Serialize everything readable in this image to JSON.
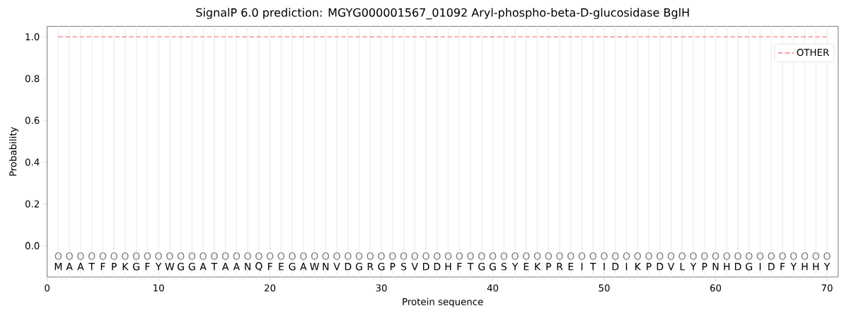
{
  "chart_data": {
    "type": "line",
    "title": "SignalP 6.0 prediction: MGYG000001567_01092 Aryl-phospho-beta-D-glucosidase BglH",
    "xlabel": "Protein sequence",
    "ylabel": "Probability",
    "x": [
      1,
      2,
      3,
      4,
      5,
      6,
      7,
      8,
      9,
      10,
      11,
      12,
      13,
      14,
      15,
      16,
      17,
      18,
      19,
      20,
      21,
      22,
      23,
      24,
      25,
      26,
      27,
      28,
      29,
      30,
      31,
      32,
      33,
      34,
      35,
      36,
      37,
      38,
      39,
      40,
      41,
      42,
      43,
      44,
      45,
      46,
      47,
      48,
      49,
      50,
      51,
      52,
      53,
      54,
      55,
      56,
      57,
      58,
      59,
      60,
      61,
      62,
      63,
      64,
      65,
      66,
      67,
      68,
      69,
      70
    ],
    "series": [
      {
        "name": "OTHER",
        "color": "#f08080",
        "line_style": "dashed",
        "values": [
          1,
          1,
          1,
          1,
          1,
          1,
          1,
          1,
          1,
          1,
          1,
          1,
          1,
          1,
          1,
          1,
          1,
          1,
          1,
          1,
          1,
          1,
          1,
          1,
          1,
          1,
          1,
          1,
          1,
          1,
          1,
          1,
          1,
          1,
          1,
          1,
          1,
          1,
          1,
          1,
          1,
          1,
          1,
          1,
          1,
          1,
          1,
          1,
          1,
          1,
          1,
          1,
          1,
          1,
          1,
          1,
          1,
          1,
          1,
          1,
          1,
          1,
          1,
          1,
          1,
          1,
          1,
          1,
          1,
          1
        ]
      }
    ],
    "xlim": [
      0,
      71
    ],
    "ylim": [
      -0.15,
      1.05
    ],
    "xticks": [
      0,
      10,
      20,
      30,
      40,
      50,
      60,
      70
    ],
    "yticks": [
      {
        "value": 0,
        "label": "0.0"
      },
      {
        "value": 0.2,
        "label": "0.2"
      },
      {
        "value": 0.4,
        "label": "0.4"
      },
      {
        "value": 0.6,
        "label": "0.6"
      },
      {
        "value": 0.8,
        "label": "0.8"
      },
      {
        "value": 1.0,
        "label": "1.0"
      }
    ],
    "legend": "top right",
    "grid": "x",
    "annotations": [
      "O",
      "O",
      "O",
      "O",
      "O",
      "O",
      "O",
      "O",
      "O",
      "O",
      "O",
      "O",
      "O",
      "O",
      "O",
      "O",
      "O",
      "O",
      "O",
      "O",
      "O",
      "O",
      "O",
      "O",
      "O",
      "O",
      "O",
      "O",
      "O",
      "O",
      "O",
      "O",
      "O",
      "O",
      "O",
      "O",
      "O",
      "O",
      "O",
      "O",
      "O",
      "O",
      "O",
      "O",
      "O",
      "O",
      "O",
      "O",
      "O",
      "O",
      "O",
      "O",
      "O",
      "O",
      "O",
      "O",
      "O",
      "O",
      "O",
      "O",
      "O",
      "O",
      "O",
      "O",
      "O",
      "O",
      "O",
      "O",
      "O",
      "O",
      "M",
      "A",
      "A",
      "T",
      "F",
      "P",
      "K",
      "G",
      "F",
      "Y",
      "W",
      "G",
      "G",
      "A",
      "T",
      "A",
      "A",
      "N",
      "Q",
      "F",
      "E",
      "G",
      "A",
      "W",
      "N",
      "V",
      "D",
      "G",
      "R",
      "G",
      "P",
      "S",
      "V",
      "D",
      "D",
      "H",
      "F",
      "T",
      "G",
      "G",
      "S",
      "Y",
      "E",
      "K",
      "P",
      "R",
      "E",
      "I",
      "T",
      "I",
      "D",
      "I",
      "K",
      "P",
      "D",
      "V",
      "L",
      "Y",
      "P",
      "N",
      "H",
      "D",
      "G",
      "I",
      "D",
      "F",
      "Y",
      "H",
      "H",
      "Y"
    ]
  }
}
